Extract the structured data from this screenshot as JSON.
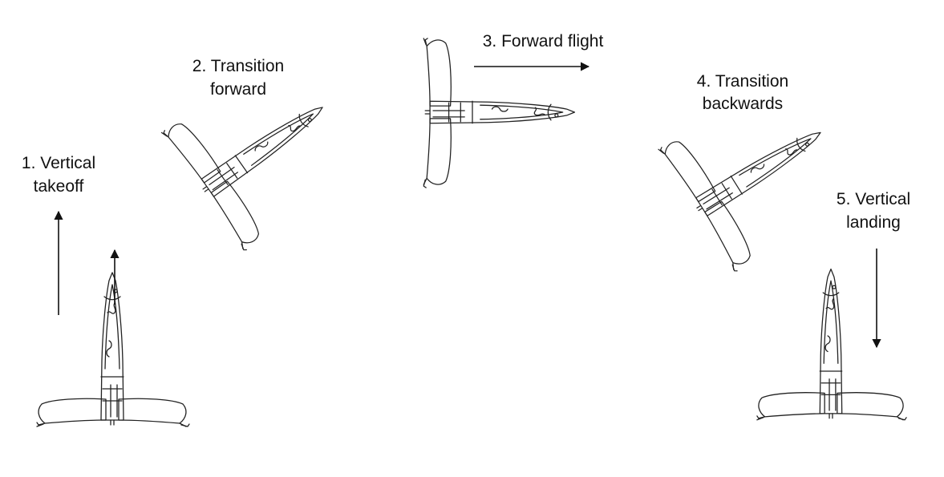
{
  "stages": [
    {
      "number": "1.",
      "line1": "Vertical",
      "line2": "takeoff"
    },
    {
      "number": "2.",
      "line1": "Transition",
      "line2": "forward"
    },
    {
      "number": "3.",
      "line1": "Forward flight",
      "line2": ""
    },
    {
      "number": "4.",
      "line1": "Transition",
      "line2": "backwards"
    },
    {
      "number": "5.",
      "line1": "Vertical",
      "line2": "landing"
    }
  ],
  "labels": {
    "s1a": "1. Vertical",
    "s1b": "takeoff",
    "s2a": "2. Transition",
    "s2b": "forward",
    "s3a": "3. Forward flight",
    "s4a": "4. Transition",
    "s4b": "backwards",
    "s5a": "5. Vertical",
    "s5b": "landing"
  },
  "colors": {
    "ink": "#222222",
    "text": "#111111",
    "background": "#ffffff"
  }
}
